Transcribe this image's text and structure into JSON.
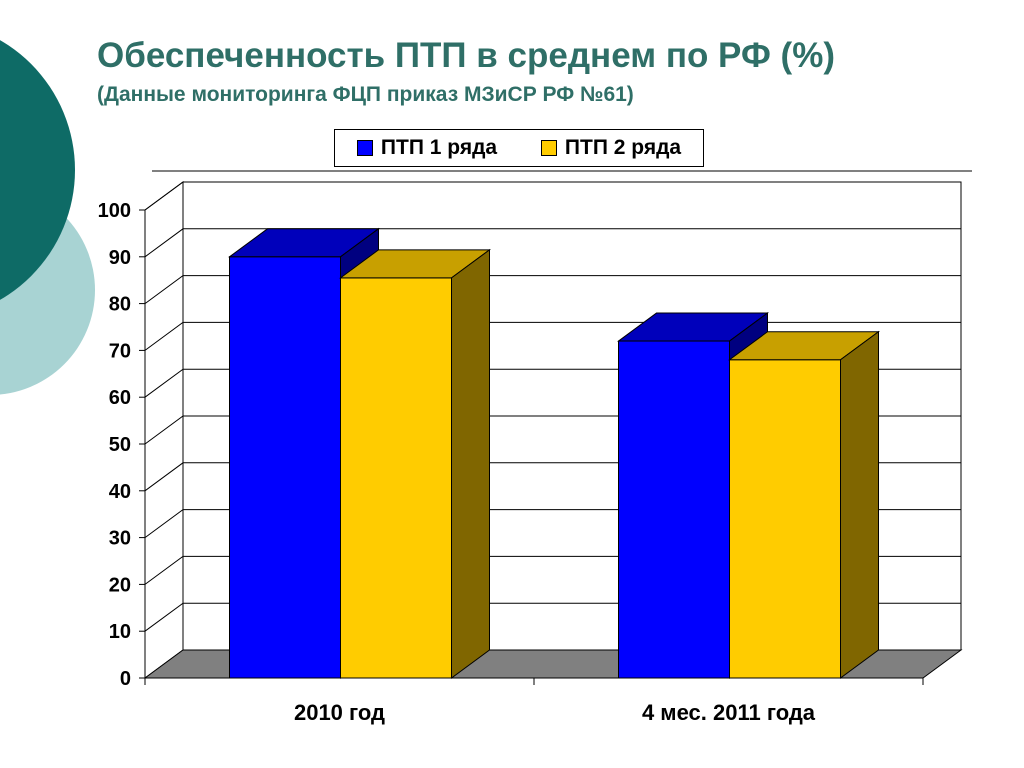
{
  "title": "Обеспеченность ПТП в среднем по РФ (%)",
  "subtitle": "(Данные мониторинга ФЦП приказ МЗиСР РФ №61)",
  "chart_data": {
    "type": "bar",
    "categories": [
      "2010 год",
      "4 мес. 2011 года"
    ],
    "series": [
      {
        "name": "ПТП 1 ряда",
        "values": [
          90,
          72
        ],
        "color": "#0000ff",
        "top_color": "#0000bb",
        "side_color": "#000080"
      },
      {
        "name": "ПТП 2 ряда",
        "values": [
          85.5,
          68
        ],
        "color": "#ffcc00",
        "top_color": "#c8a000",
        "side_color": "#806600"
      }
    ],
    "ylim": [
      0,
      100
    ],
    "yticks": [
      0,
      10,
      20,
      30,
      40,
      50,
      60,
      70,
      80,
      90,
      100
    ],
    "grid": true,
    "three_d": true,
    "legend_position": "top",
    "floor_color": "#808080"
  },
  "colors": {
    "title": "#2f6f67",
    "circle_dark": "#0e6b66",
    "circle_light": "#a8d3d3"
  }
}
